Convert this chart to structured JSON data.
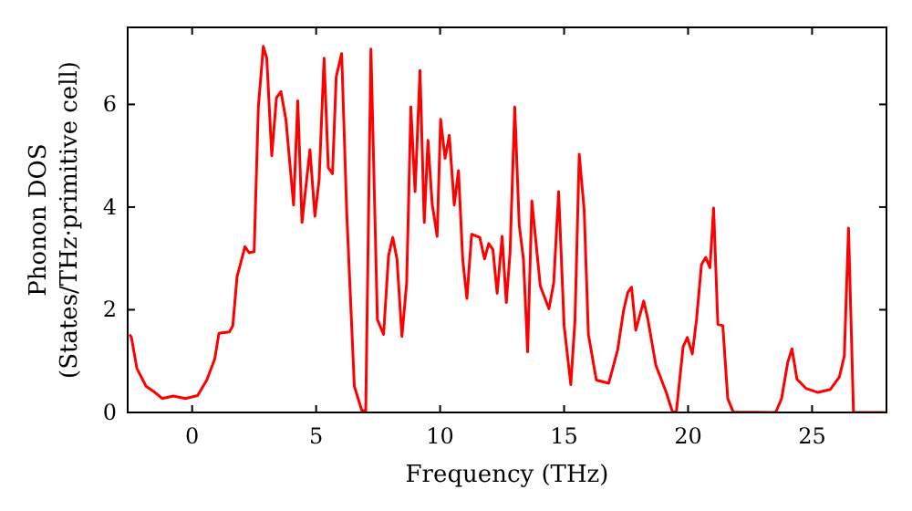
{
  "chart_data": {
    "type": "line",
    "xlabel": "Frequency (THz)",
    "ylabel": "Phonon DOS\n(States/THz·primitive cell)",
    "xlim": [
      -2.6,
      28
    ],
    "ylim": [
      0,
      7.5
    ],
    "xticks": [
      0,
      5,
      10,
      15,
      20,
      25
    ],
    "yticks": [
      0,
      2,
      4,
      6
    ],
    "grid": false,
    "marker": "none",
    "line_style": "solid",
    "series": [
      {
        "color": "#ff0000",
        "x": [
          -2.52,
          -2.45,
          -2.23,
          -1.86,
          -1.5,
          -1.2,
          -0.76,
          -0.27,
          0.22,
          0.59,
          0.91,
          1.08,
          1.5,
          1.64,
          1.81,
          2.13,
          2.3,
          2.5,
          2.67,
          2.87,
          3.01,
          3.21,
          3.4,
          3.58,
          3.78,
          4.09,
          4.26,
          4.43,
          4.75,
          4.95,
          5.12,
          5.32,
          5.49,
          5.66,
          5.81,
          6.03,
          6.23,
          6.54,
          6.84,
          7.0,
          7.21,
          7.47,
          7.72,
          7.92,
          8.09,
          8.26,
          8.46,
          8.65,
          8.82,
          8.99,
          9.19,
          9.36,
          9.51,
          9.68,
          9.88,
          10.02,
          10.2,
          10.37,
          10.57,
          10.74,
          10.91,
          11.08,
          11.27,
          11.6,
          11.79,
          11.96,
          12.13,
          12.3,
          12.5,
          12.67,
          12.82,
          13.01,
          13.19,
          13.36,
          13.53,
          13.7,
          14.04,
          14.39,
          14.58,
          14.78,
          15.0,
          15.27,
          15.44,
          15.61,
          15.81,
          15.98,
          16.3,
          16.8,
          17.16,
          17.4,
          17.57,
          17.72,
          17.89,
          18.21,
          18.38,
          18.7,
          19.12,
          19.37,
          19.53,
          19.8,
          19.97,
          20.17,
          20.34,
          20.54,
          20.71,
          20.88,
          21.03,
          21.2,
          21.4,
          21.6,
          21.82,
          23.53,
          23.77,
          24.02,
          24.19,
          24.39,
          24.75,
          25.24,
          25.74,
          26.1,
          26.3,
          26.47,
          26.67,
          27.94
        ],
        "values": [
          1.52,
          1.46,
          0.86,
          0.51,
          0.39,
          0.27,
          0.32,
          0.27,
          0.33,
          0.63,
          1.04,
          1.54,
          1.57,
          1.69,
          2.64,
          3.23,
          3.11,
          3.13,
          5.95,
          7.13,
          6.9,
          5.0,
          6.13,
          6.25,
          5.71,
          4.04,
          6.07,
          3.7,
          5.12,
          3.82,
          4.53,
          6.9,
          4.77,
          4.65,
          6.54,
          6.99,
          3.94,
          0.51,
          0.04,
          0.03,
          7.08,
          1.81,
          1.52,
          3.05,
          3.41,
          2.99,
          1.48,
          2.52,
          5.95,
          4.3,
          6.66,
          3.7,
          5.3,
          4.06,
          3.43,
          5.71,
          4.95,
          5.4,
          4.04,
          4.71,
          2.99,
          2.22,
          3.47,
          3.41,
          2.99,
          3.29,
          3.17,
          2.32,
          3.43,
          2.14,
          3.11,
          5.95,
          3.65,
          2.99,
          1.18,
          4.12,
          2.46,
          2.02,
          2.52,
          4.3,
          1.69,
          0.54,
          1.81,
          5.03,
          3.94,
          1.52,
          0.63,
          0.57,
          1.22,
          1.99,
          2.34,
          2.44,
          1.6,
          2.17,
          1.81,
          0.92,
          0.39,
          0.01,
          0.03,
          1.28,
          1.46,
          1.14,
          1.81,
          2.88,
          3.02,
          2.82,
          3.98,
          1.72,
          1.69,
          0.27,
          0.01,
          0,
          0.27,
          0.98,
          1.24,
          0.65,
          0.47,
          0.39,
          0.45,
          0.69,
          1.1,
          3.59,
          0,
          0
        ]
      }
    ]
  }
}
